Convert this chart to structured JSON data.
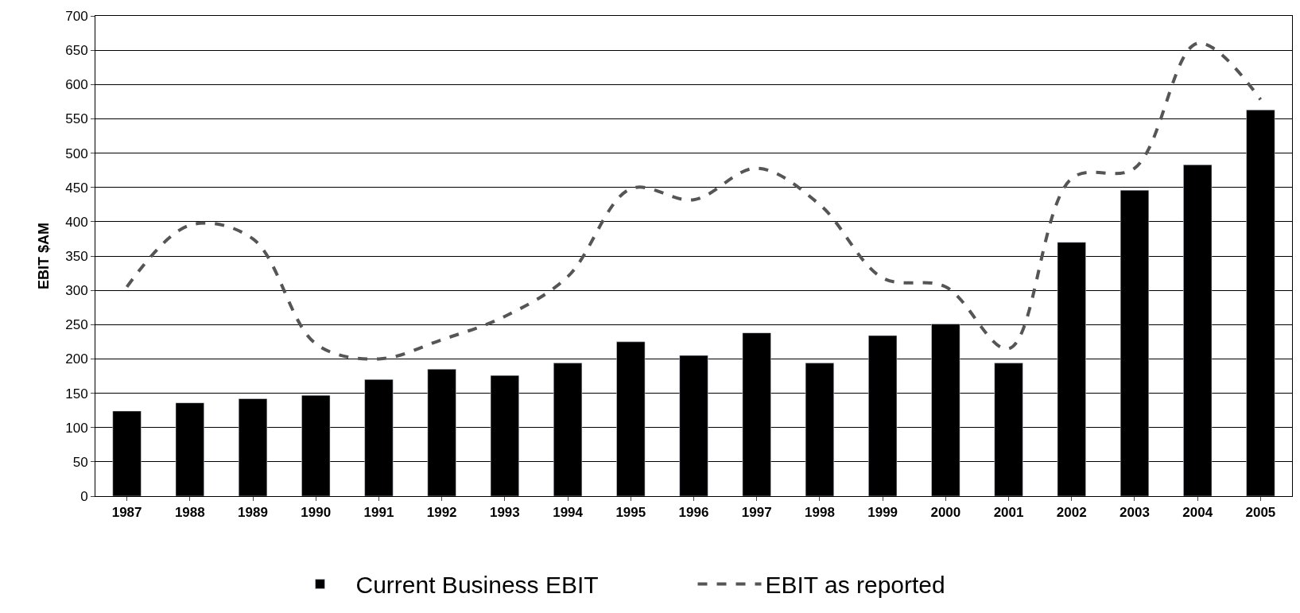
{
  "chart_data": {
    "type": "bar",
    "ylabel": "EBIT $AM",
    "categories": [
      "1987",
      "1988",
      "1989",
      "1990",
      "1991",
      "1992",
      "1993",
      "1994",
      "1995",
      "1996",
      "1997",
      "1998",
      "1999",
      "2000",
      "2001",
      "2002",
      "2003",
      "2004",
      "2005"
    ],
    "series": [
      {
        "name": "Current Business EBIT",
        "color": "#000000",
        "values": [
          124,
          136,
          142,
          147,
          170,
          185,
          176,
          194,
          225,
          205,
          238,
          194,
          234,
          251,
          194,
          370,
          446,
          483,
          563
        ]
      },
      {
        "name": "EBIT as reported",
        "type": "line",
        "color": "#555555",
        "line_style": "dashed",
        "marker": "none",
        "values": [
          305,
          395,
          375,
          222,
          200,
          228,
          262,
          320,
          448,
          432,
          478,
          425,
          318,
          305,
          215,
          463,
          478,
          660,
          578
        ]
      }
    ],
    "ylim": [
      0,
      700
    ],
    "yticks": [
      0,
      50,
      100,
      150,
      200,
      250,
      300,
      350,
      400,
      450,
      500,
      550,
      600,
      650,
      700
    ],
    "grid": "y",
    "legend": "bottom"
  }
}
